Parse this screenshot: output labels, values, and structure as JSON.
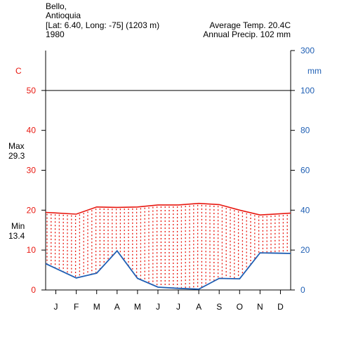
{
  "header": {
    "station": "Bello,",
    "region": "Antioquia",
    "coords": "[Lat: 6.40, Long: -75] (1203 m)",
    "year": "1980",
    "avg_temp": "Average Temp. 20.4C",
    "annual_precip": "Annual Precip. 102 mm"
  },
  "axes": {
    "left_unit": "C",
    "right_unit": "mm",
    "max_label": "Max",
    "max_value": "29.3",
    "min_label": "Min",
    "min_value": "13.4",
    "left_ticks": [
      "0",
      "10",
      "20",
      "30",
      "40",
      "50"
    ],
    "right_ticks": [
      "0",
      "20",
      "40",
      "60",
      "80",
      "100",
      "300"
    ]
  },
  "colors": {
    "temperature": "#e8170f",
    "precipitation": "#1f5fb4",
    "axis": "#000000"
  },
  "chart_data": {
    "type": "line",
    "title": "",
    "categories": [
      "J",
      "F",
      "M",
      "A",
      "M",
      "J",
      "J",
      "A",
      "S",
      "O",
      "N",
      "D"
    ],
    "series": [],
    "temperature_c": [
      19.3,
      19.0,
      20.8,
      20.7,
      20.8,
      21.3,
      21.3,
      21.7,
      21.4,
      20.0,
      18.8,
      19.1
    ],
    "precipitation_mm": [
      10.8,
      6.0,
      8.4,
      19.6,
      5.8,
      1.4,
      0.8,
      0.4,
      5.8,
      5.6,
      18.6,
      18.4
    ],
    "left_axis": {
      "unit": "C",
      "range": [
        0,
        60
      ],
      "ticks": [
        0,
        10,
        20,
        30,
        40,
        50
      ]
    },
    "right_axis": {
      "unit": "mm",
      "range": [
        0,
        120
      ],
      "ticks": [
        0,
        20,
        40,
        60,
        80,
        100
      ],
      "compressed_top_tick": 300,
      "compressed_above": 100
    },
    "reference_line": 50,
    "grid": false
  }
}
